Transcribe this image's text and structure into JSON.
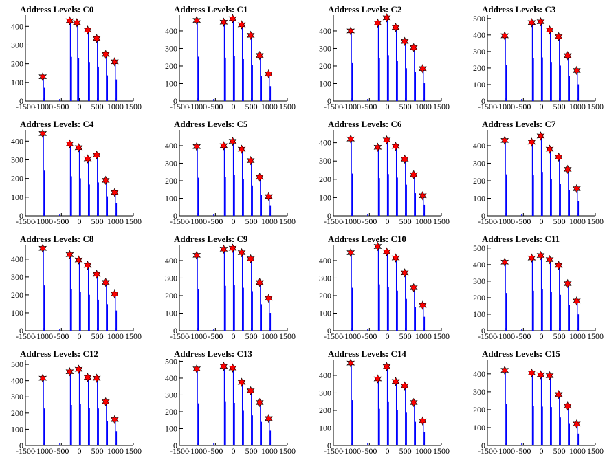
{
  "chart_data": [
    {
      "type": "line",
      "title": "Address Levels: C0",
      "xlim": [
        -1500,
        1500
      ],
      "ylim": [
        0,
        460
      ],
      "yticks": [
        0,
        100,
        200,
        300,
        400
      ],
      "xticks": [
        -1500,
        -1000,
        -500,
        0,
        500,
        1000,
        1500
      ],
      "peaks": [
        [
          -1000,
          130
        ],
        [
          -250,
          430
        ],
        [
          -50,
          420
        ],
        [
          250,
          380
        ],
        [
          500,
          335
        ],
        [
          750,
          250
        ],
        [
          1000,
          210
        ]
      ]
    },
    {
      "type": "line",
      "title": "Address Levels: C1",
      "xlim": [
        -1500,
        1500
      ],
      "ylim": [
        0,
        490
      ],
      "yticks": [
        0,
        100,
        200,
        300,
        400
      ],
      "xticks": [
        -1500,
        -1000,
        -500,
        0,
        500,
        1000,
        1500
      ],
      "peaks": [
        [
          -1000,
          460
        ],
        [
          -250,
          450
        ],
        [
          0,
          470
        ],
        [
          250,
          435
        ],
        [
          500,
          375
        ],
        [
          750,
          260
        ],
        [
          1000,
          155
        ]
      ]
    },
    {
      "type": "line",
      "title": "Address Levels: C2",
      "xlim": [
        -1500,
        1500
      ],
      "ylim": [
        0,
        490
      ],
      "yticks": [
        0,
        100,
        200,
        300,
        400
      ],
      "xticks": [
        -1500,
        -1000,
        -500,
        0,
        500,
        1000,
        1500
      ],
      "peaks": [
        [
          -1000,
          400
        ],
        [
          -250,
          445
        ],
        [
          0,
          475
        ],
        [
          250,
          420
        ],
        [
          500,
          340
        ],
        [
          750,
          305
        ],
        [
          1000,
          185
        ]
      ]
    },
    {
      "type": "line",
      "title": "Address Levels: C3",
      "xlim": [
        -1500,
        1500
      ],
      "ylim": [
        0,
        520
      ],
      "yticks": [
        0,
        100,
        200,
        300,
        400,
        500
      ],
      "xticks": [
        -1500,
        -1000,
        -500,
        0,
        500,
        1000,
        1500
      ],
      "peaks": [
        [
          -1000,
          395
        ],
        [
          -250,
          475
        ],
        [
          0,
          480
        ],
        [
          250,
          430
        ],
        [
          500,
          390
        ],
        [
          750,
          275
        ],
        [
          1000,
          185
        ]
      ]
    },
    {
      "type": "line",
      "title": "Address Levels: C4",
      "xlim": [
        -1500,
        1500
      ],
      "ylim": [
        0,
        460
      ],
      "yticks": [
        0,
        100,
        200,
        300,
        400
      ],
      "xticks": [
        -1500,
        -1000,
        -500,
        0,
        500,
        1000,
        1500
      ],
      "peaks": [
        [
          -1000,
          440
        ],
        [
          -250,
          385
        ],
        [
          0,
          365
        ],
        [
          250,
          305
        ],
        [
          500,
          325
        ],
        [
          750,
          190
        ],
        [
          1000,
          125
        ]
      ]
    },
    {
      "type": "line",
      "title": "Address Levels: C5",
      "xlim": [
        -1500,
        1500
      ],
      "ylim": [
        0,
        490
      ],
      "yticks": [
        0,
        100,
        200,
        300,
        400
      ],
      "xticks": [
        -1500,
        -1000,
        -500,
        0,
        500,
        1000,
        1500
      ],
      "peaks": [
        [
          -1000,
          395
        ],
        [
          -250,
          400
        ],
        [
          0,
          425
        ],
        [
          250,
          380
        ],
        [
          500,
          315
        ],
        [
          750,
          220
        ],
        [
          1000,
          110
        ]
      ]
    },
    {
      "type": "line",
      "title": "Address Levels: C6",
      "xlim": [
        -1500,
        1500
      ],
      "ylim": [
        0,
        470
      ],
      "yticks": [
        0,
        100,
        200,
        300,
        400
      ],
      "xticks": [
        -1500,
        -1000,
        -500,
        0,
        500,
        1000,
        1500
      ],
      "peaks": [
        [
          -1000,
          420
        ],
        [
          -250,
          375
        ],
        [
          0,
          415
        ],
        [
          250,
          380
        ],
        [
          500,
          310
        ],
        [
          750,
          225
        ],
        [
          1000,
          110
        ]
      ]
    },
    {
      "type": "line",
      "title": "Address Levels: C7",
      "xlim": [
        -1500,
        1500
      ],
      "ylim": [
        0,
        490
      ],
      "yticks": [
        0,
        100,
        200,
        300,
        400
      ],
      "xticks": [
        -1500,
        -1000,
        -500,
        0,
        500,
        1000,
        1500
      ],
      "peaks": [
        [
          -1000,
          430
        ],
        [
          -250,
          420
        ],
        [
          0,
          455
        ],
        [
          250,
          380
        ],
        [
          500,
          335
        ],
        [
          750,
          265
        ],
        [
          1000,
          155
        ]
      ]
    },
    {
      "type": "line",
      "title": "Address Levels: C8",
      "xlim": [
        -1500,
        1500
      ],
      "ylim": [
        0,
        480
      ],
      "yticks": [
        0,
        100,
        200,
        300,
        400
      ],
      "xticks": [
        -1500,
        -1000,
        -500,
        0,
        500,
        1000,
        1500
      ],
      "peaks": [
        [
          -1000,
          460
        ],
        [
          -250,
          425
        ],
        [
          0,
          395
        ],
        [
          250,
          365
        ],
        [
          500,
          315
        ],
        [
          750,
          270
        ],
        [
          1000,
          205
        ]
      ]
    },
    {
      "type": "line",
      "title": "Address Levels: C9",
      "xlim": [
        -1500,
        1500
      ],
      "ylim": [
        0,
        490
      ],
      "yticks": [
        0,
        100,
        200,
        300,
        400
      ],
      "xticks": [
        -1500,
        -1000,
        -500,
        0,
        500,
        1000,
        1500
      ],
      "peaks": [
        [
          -1000,
          430
        ],
        [
          -250,
          465
        ],
        [
          0,
          470
        ],
        [
          250,
          445
        ],
        [
          500,
          410
        ],
        [
          750,
          275
        ],
        [
          1000,
          185
        ]
      ]
    },
    {
      "type": "line",
      "title": "Address Levels: C10",
      "xlim": [
        -1500,
        1500
      ],
      "ylim": [
        0,
        490
      ],
      "yticks": [
        0,
        100,
        200,
        300,
        400
      ],
      "xticks": [
        -1500,
        -1000,
        -500,
        0,
        500,
        1000,
        1500
      ],
      "peaks": [
        [
          -1000,
          445
        ],
        [
          -250,
          480
        ],
        [
          0,
          450
        ],
        [
          250,
          415
        ],
        [
          500,
          330
        ],
        [
          750,
          245
        ],
        [
          1000,
          145
        ]
      ]
    },
    {
      "type": "line",
      "title": "Address Levels: C11",
      "xlim": [
        -1500,
        1500
      ],
      "ylim": [
        0,
        520
      ],
      "yticks": [
        0,
        100,
        200,
        300,
        400,
        500
      ],
      "xticks": [
        -1500,
        -1000,
        -500,
        0,
        500,
        1000,
        1500
      ],
      "peaks": [
        [
          -1000,
          415
        ],
        [
          -250,
          440
        ],
        [
          0,
          455
        ],
        [
          250,
          430
        ],
        [
          500,
          395
        ],
        [
          750,
          285
        ],
        [
          1000,
          180
        ]
      ]
    },
    {
      "type": "line",
      "title": "Address Levels: C12",
      "xlim": [
        -1500,
        1500
      ],
      "ylim": [
        0,
        530
      ],
      "yticks": [
        0,
        100,
        200,
        300,
        400,
        500
      ],
      "xticks": [
        -1500,
        -1000,
        -500,
        0,
        500,
        1000,
        1500
      ],
      "peaks": [
        [
          -1000,
          415
        ],
        [
          -250,
          455
        ],
        [
          0,
          470
        ],
        [
          250,
          420
        ],
        [
          500,
          415
        ],
        [
          750,
          270
        ],
        [
          1000,
          160
        ]
      ]
    },
    {
      "type": "line",
      "title": "Address Levels: C13",
      "xlim": [
        -1500,
        1500
      ],
      "ylim": [
        0,
        510
      ],
      "yticks": [
        0,
        100,
        200,
        300,
        400,
        500
      ],
      "xticks": [
        -1500,
        -1000,
        -500,
        0,
        500,
        1000,
        1500
      ],
      "peaks": [
        [
          -1000,
          455
        ],
        [
          -250,
          470
        ],
        [
          0,
          460
        ],
        [
          250,
          375
        ],
        [
          500,
          325
        ],
        [
          750,
          255
        ],
        [
          1000,
          160
        ]
      ]
    },
    {
      "type": "line",
      "title": "Address Levels: C14",
      "xlim": [
        -1500,
        1500
      ],
      "ylim": [
        0,
        490
      ],
      "yticks": [
        0,
        100,
        200,
        300,
        400
      ],
      "xticks": [
        -1500,
        -1000,
        -500,
        0,
        500,
        1000,
        1500
      ],
      "peaks": [
        [
          -1000,
          470
        ],
        [
          -250,
          380
        ],
        [
          0,
          450
        ],
        [
          250,
          365
        ],
        [
          500,
          340
        ],
        [
          750,
          245
        ],
        [
          1000,
          140
        ]
      ]
    },
    {
      "type": "line",
      "title": "Address Levels: C15",
      "xlim": [
        -1500,
        1500
      ],
      "ylim": [
        0,
        480
      ],
      "yticks": [
        0,
        100,
        200,
        300,
        400
      ],
      "xticks": [
        -1500,
        -1000,
        -500,
        0,
        500,
        1000,
        1500
      ],
      "peaks": [
        [
          -1000,
          420
        ],
        [
          -250,
          405
        ],
        [
          0,
          395
        ],
        [
          250,
          390
        ],
        [
          500,
          285
        ],
        [
          750,
          220
        ],
        [
          1000,
          120
        ]
      ]
    }
  ],
  "colors": {
    "trace": "#0000ff",
    "marker_fill": "#ff0000",
    "marker_stroke": "#000000",
    "axis": "#000000"
  },
  "marker_icon": "red-star-marker"
}
